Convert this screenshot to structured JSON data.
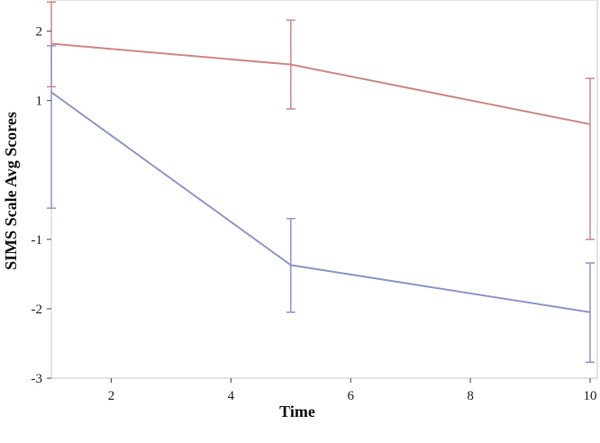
{
  "chart_data": {
    "type": "line",
    "title": "",
    "xlabel": "Time",
    "ylabel": "SIMS Scale Avg Scores",
    "x": [
      1,
      5,
      10
    ],
    "xlim": [
      1,
      10
    ],
    "ylim": [
      -3,
      2.45
    ],
    "x_ticks": [
      2,
      4,
      6,
      8,
      10
    ],
    "x_tick_labels": [
      "2",
      "4",
      "6",
      "8",
      "10"
    ],
    "y_ticks": [
      -3,
      -2,
      -1,
      1,
      2
    ],
    "y_tick_labels": [
      "-3",
      "-2",
      "-1",
      "1",
      "2"
    ],
    "grid": false,
    "legend": "none",
    "series": [
      {
        "color": "#d08787",
        "values": [
          1.82,
          1.52,
          0.66
        ],
        "err_low": [
          1.2,
          0.88,
          -1.0
        ],
        "err_high": [
          2.42,
          2.16,
          1.32
        ]
      },
      {
        "color": "#8d97c6",
        "values": [
          1.12,
          -1.37,
          -2.05
        ],
        "err_low": [
          -0.55,
          -2.05,
          -2.77
        ],
        "err_high": [
          1.79,
          -0.7,
          -1.34
        ]
      }
    ]
  }
}
